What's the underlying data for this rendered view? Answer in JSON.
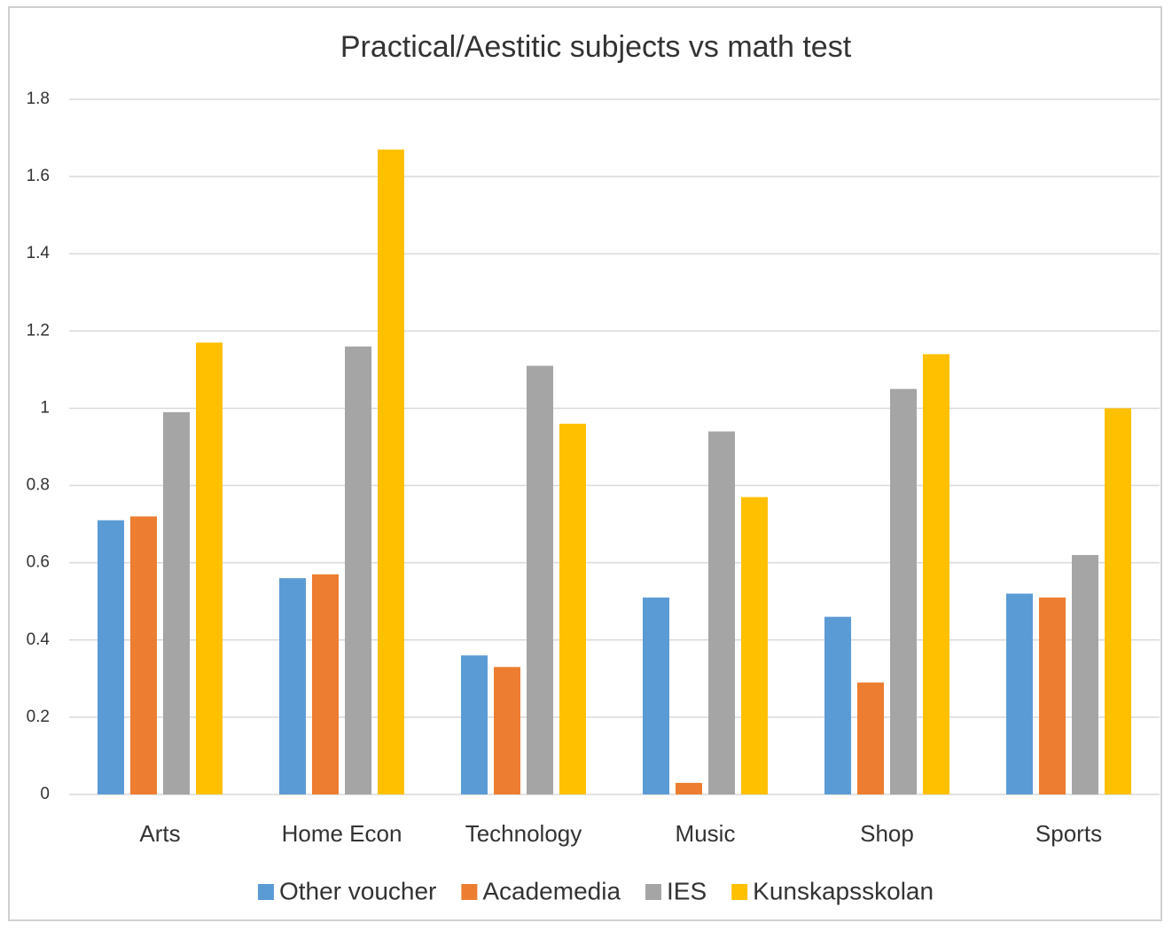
{
  "chart_data": {
    "type": "bar",
    "title": "Practical/Aestitic subjects vs math test",
    "categories": [
      "Arts",
      "Home Econ",
      "Technology",
      "Music",
      "Shop",
      "Sports"
    ],
    "series": [
      {
        "name": "Other voucher",
        "color": "#5b9bd5",
        "values": [
          0.71,
          0.56,
          0.36,
          0.51,
          0.46,
          0.52
        ]
      },
      {
        "name": "Academedia",
        "color": "#ed7d31",
        "values": [
          0.72,
          0.57,
          0.33,
          0.03,
          0.29,
          0.51
        ]
      },
      {
        "name": "IES",
        "color": "#a5a5a5",
        "values": [
          0.99,
          1.16,
          1.11,
          0.94,
          1.05,
          0.62
        ]
      },
      {
        "name": "Kunskapsskolan",
        "color": "#ffc000",
        "values": [
          1.17,
          1.67,
          0.96,
          0.77,
          1.14,
          1.0
        ]
      }
    ],
    "ylim": [
      0,
      1.8
    ],
    "yticks": [
      0,
      0.2,
      0.4,
      0.6,
      0.8,
      1,
      1.2,
      1.4,
      1.6,
      1.8
    ],
    "grid": true,
    "legend": "bottom"
  }
}
